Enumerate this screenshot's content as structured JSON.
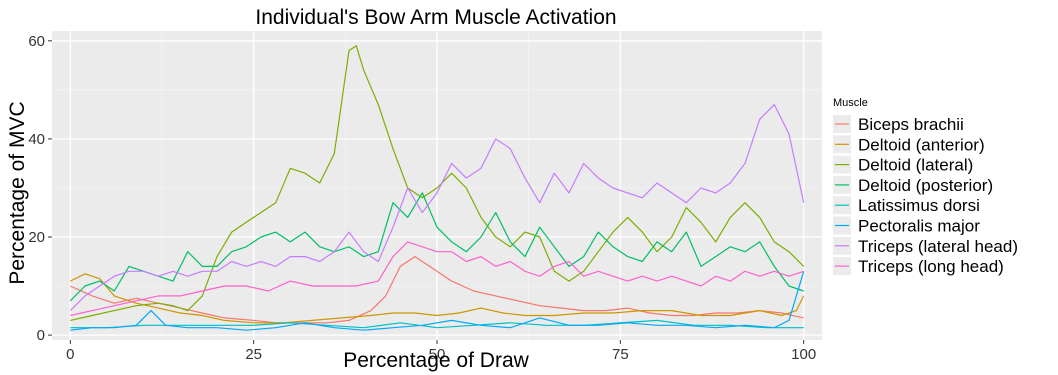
{
  "chart_data": {
    "type": "line",
    "title": "Individual's Bow Arm Muscle Activation",
    "xlabel": "Percentage of Draw",
    "ylabel": "Percentage of MVC",
    "xlim": [
      -2.5,
      102.5
    ],
    "ylim": [
      -1,
      62
    ],
    "x_ticks": [
      0,
      25,
      50,
      75,
      100
    ],
    "y_ticks": [
      0,
      20,
      40,
      60
    ],
    "grid": true,
    "background": "#ebebeb",
    "legend": {
      "title": "Muscle",
      "position": "right"
    },
    "series": [
      {
        "name": "Biceps brachii",
        "color": "#F8766D",
        "points": [
          [
            0,
            10
          ],
          [
            3,
            8
          ],
          [
            6,
            6.5
          ],
          [
            9,
            7.5
          ],
          [
            12,
            6.5
          ],
          [
            15,
            5.5
          ],
          [
            18,
            4.5
          ],
          [
            21,
            3.5
          ],
          [
            25,
            3
          ],
          [
            28,
            2.5
          ],
          [
            31,
            2.5
          ],
          [
            35,
            2.5
          ],
          [
            38,
            3
          ],
          [
            41,
            5
          ],
          [
            43,
            8
          ],
          [
            45,
            14
          ],
          [
            47,
            16
          ],
          [
            49,
            14
          ],
          [
            52,
            11
          ],
          [
            55,
            9
          ],
          [
            58,
            8
          ],
          [
            61,
            7
          ],
          [
            64,
            6
          ],
          [
            67,
            5.5
          ],
          [
            70,
            5
          ],
          [
            73,
            5
          ],
          [
            76,
            5.5
          ],
          [
            79,
            4.5
          ],
          [
            82,
            4
          ],
          [
            85,
            4
          ],
          [
            88,
            4.5
          ],
          [
            91,
            4.5
          ],
          [
            94,
            5
          ],
          [
            97,
            4.5
          ],
          [
            100,
            3.5
          ]
        ]
      },
      {
        "name": "Deltoid (anterior)",
        "color": "#CD9600",
        "points": [
          [
            0,
            11
          ],
          [
            2,
            12.5
          ],
          [
            4,
            11.5
          ],
          [
            6,
            8
          ],
          [
            9,
            6.5
          ],
          [
            12,
            5.5
          ],
          [
            15,
            4.5
          ],
          [
            18,
            4
          ],
          [
            21,
            3
          ],
          [
            25,
            2.5
          ],
          [
            29,
            2.5
          ],
          [
            33,
            3
          ],
          [
            37,
            3.5
          ],
          [
            41,
            4
          ],
          [
            44,
            4.5
          ],
          [
            47,
            4.5
          ],
          [
            50,
            4
          ],
          [
            53,
            4.5
          ],
          [
            56,
            5.5
          ],
          [
            59,
            4.5
          ],
          [
            62,
            4
          ],
          [
            66,
            4
          ],
          [
            70,
            4.5
          ],
          [
            74,
            4.5
          ],
          [
            78,
            5
          ],
          [
            82,
            5
          ],
          [
            86,
            4
          ],
          [
            90,
            4
          ],
          [
            94,
            5
          ],
          [
            97,
            4
          ],
          [
            99,
            5
          ],
          [
            100,
            8
          ]
        ]
      },
      {
        "name": "Deltoid (lateral)",
        "color": "#7CAE00",
        "points": [
          [
            0,
            3
          ],
          [
            3,
            4
          ],
          [
            6,
            5
          ],
          [
            9,
            6
          ],
          [
            12,
            6.5
          ],
          [
            14,
            6
          ],
          [
            16,
            5
          ],
          [
            18,
            8
          ],
          [
            20,
            16
          ],
          [
            22,
            21
          ],
          [
            24,
            23
          ],
          [
            26,
            25
          ],
          [
            28,
            27
          ],
          [
            30,
            34
          ],
          [
            32,
            33
          ],
          [
            34,
            31
          ],
          [
            36,
            37
          ],
          [
            38,
            58
          ],
          [
            39,
            59
          ],
          [
            40,
            54
          ],
          [
            42,
            47
          ],
          [
            44,
            38
          ],
          [
            46,
            30
          ],
          [
            48,
            28
          ],
          [
            50,
            30
          ],
          [
            52,
            33
          ],
          [
            54,
            30
          ],
          [
            56,
            24
          ],
          [
            58,
            20
          ],
          [
            60,
            18
          ],
          [
            62,
            21
          ],
          [
            64,
            20
          ],
          [
            66,
            13
          ],
          [
            68,
            11
          ],
          [
            70,
            13
          ],
          [
            72,
            17
          ],
          [
            74,
            21
          ],
          [
            76,
            24
          ],
          [
            78,
            21
          ],
          [
            80,
            17
          ],
          [
            82,
            20
          ],
          [
            84,
            26
          ],
          [
            86,
            23
          ],
          [
            88,
            19
          ],
          [
            90,
            24
          ],
          [
            92,
            27
          ],
          [
            94,
            24
          ],
          [
            96,
            19
          ],
          [
            98,
            17
          ],
          [
            100,
            14
          ]
        ]
      },
      {
        "name": "Deltoid (posterior)",
        "color": "#00BE67",
        "points": [
          [
            0,
            7
          ],
          [
            2,
            10
          ],
          [
            4,
            11
          ],
          [
            6,
            9
          ],
          [
            8,
            14
          ],
          [
            10,
            13
          ],
          [
            12,
            12
          ],
          [
            14,
            11
          ],
          [
            16,
            17
          ],
          [
            18,
            14
          ],
          [
            20,
            14
          ],
          [
            22,
            17
          ],
          [
            24,
            18
          ],
          [
            26,
            20
          ],
          [
            28,
            21
          ],
          [
            30,
            19
          ],
          [
            32,
            21
          ],
          [
            34,
            18
          ],
          [
            36,
            17
          ],
          [
            38,
            18
          ],
          [
            40,
            16
          ],
          [
            42,
            17
          ],
          [
            44,
            27
          ],
          [
            46,
            24
          ],
          [
            48,
            29
          ],
          [
            50,
            22
          ],
          [
            52,
            19
          ],
          [
            54,
            17
          ],
          [
            56,
            20
          ],
          [
            58,
            25
          ],
          [
            60,
            19
          ],
          [
            62,
            16
          ],
          [
            64,
            22
          ],
          [
            66,
            18
          ],
          [
            68,
            14
          ],
          [
            70,
            16
          ],
          [
            72,
            21
          ],
          [
            74,
            18
          ],
          [
            76,
            16
          ],
          [
            78,
            15
          ],
          [
            80,
            19
          ],
          [
            82,
            17
          ],
          [
            84,
            21
          ],
          [
            86,
            14
          ],
          [
            88,
            16
          ],
          [
            90,
            18
          ],
          [
            92,
            17
          ],
          [
            94,
            19
          ],
          [
            96,
            14
          ],
          [
            98,
            10
          ],
          [
            100,
            9
          ]
        ]
      },
      {
        "name": "Latissimus dorsi",
        "color": "#00BFC4",
        "points": [
          [
            0,
            1.5
          ],
          [
            5,
            1.5
          ],
          [
            10,
            2
          ],
          [
            15,
            2
          ],
          [
            20,
            2
          ],
          [
            25,
            2
          ],
          [
            30,
            2.5
          ],
          [
            35,
            2
          ],
          [
            40,
            1.5
          ],
          [
            45,
            2.5
          ],
          [
            50,
            1.5
          ],
          [
            55,
            2
          ],
          [
            60,
            2.5
          ],
          [
            65,
            2
          ],
          [
            70,
            2
          ],
          [
            75,
            2.5
          ],
          [
            80,
            3
          ],
          [
            85,
            2
          ],
          [
            90,
            2
          ],
          [
            95,
            1.5
          ],
          [
            100,
            1.5
          ]
        ]
      },
      {
        "name": "Pectoralis major",
        "color": "#00A9FF",
        "points": [
          [
            0,
            1
          ],
          [
            3,
            1.5
          ],
          [
            6,
            1.5
          ],
          [
            9,
            2
          ],
          [
            11,
            5
          ],
          [
            13,
            2
          ],
          [
            16,
            1.5
          ],
          [
            20,
            1.5
          ],
          [
            24,
            1
          ],
          [
            28,
            1.5
          ],
          [
            32,
            2.5
          ],
          [
            36,
            1.5
          ],
          [
            40,
            1
          ],
          [
            44,
            1.5
          ],
          [
            48,
            2
          ],
          [
            52,
            3
          ],
          [
            56,
            2
          ],
          [
            60,
            1.5
          ],
          [
            64,
            3.5
          ],
          [
            68,
            2
          ],
          [
            72,
            2
          ],
          [
            76,
            2.5
          ],
          [
            80,
            2
          ],
          [
            84,
            2
          ],
          [
            88,
            1.5
          ],
          [
            92,
            2
          ],
          [
            96,
            1.5
          ],
          [
            98,
            3
          ],
          [
            100,
            13
          ]
        ]
      },
      {
        "name": "Triceps (lateral head)",
        "color": "#C77CFF",
        "points": [
          [
            0,
            5
          ],
          [
            2,
            8
          ],
          [
            4,
            10
          ],
          [
            6,
            12
          ],
          [
            8,
            13
          ],
          [
            10,
            13
          ],
          [
            12,
            12
          ],
          [
            14,
            13
          ],
          [
            16,
            12
          ],
          [
            18,
            13
          ],
          [
            20,
            13
          ],
          [
            22,
            15
          ],
          [
            24,
            14
          ],
          [
            26,
            15
          ],
          [
            28,
            14
          ],
          [
            30,
            16
          ],
          [
            32,
            16
          ],
          [
            34,
            15
          ],
          [
            36,
            17
          ],
          [
            38,
            21
          ],
          [
            40,
            17
          ],
          [
            42,
            15
          ],
          [
            44,
            22
          ],
          [
            46,
            30
          ],
          [
            48,
            25
          ],
          [
            50,
            29
          ],
          [
            52,
            35
          ],
          [
            54,
            32
          ],
          [
            56,
            34
          ],
          [
            58,
            40
          ],
          [
            60,
            38
          ],
          [
            62,
            32
          ],
          [
            64,
            27
          ],
          [
            66,
            33
          ],
          [
            68,
            29
          ],
          [
            70,
            35
          ],
          [
            72,
            32
          ],
          [
            74,
            30
          ],
          [
            76,
            29
          ],
          [
            78,
            28
          ],
          [
            80,
            31
          ],
          [
            82,
            29
          ],
          [
            84,
            27
          ],
          [
            86,
            30
          ],
          [
            88,
            29
          ],
          [
            90,
            31
          ],
          [
            92,
            35
          ],
          [
            94,
            44
          ],
          [
            96,
            47
          ],
          [
            98,
            41
          ],
          [
            100,
            27
          ]
        ]
      },
      {
        "name": "Triceps (long head)",
        "color": "#FF61CC",
        "points": [
          [
            0,
            4
          ],
          [
            3,
            5
          ],
          [
            6,
            6
          ],
          [
            9,
            7
          ],
          [
            12,
            8
          ],
          [
            15,
            8
          ],
          [
            18,
            9
          ],
          [
            21,
            10
          ],
          [
            24,
            10
          ],
          [
            27,
            9
          ],
          [
            30,
            11
          ],
          [
            33,
            10
          ],
          [
            36,
            10
          ],
          [
            39,
            10
          ],
          [
            42,
            11
          ],
          [
            44,
            16
          ],
          [
            46,
            19
          ],
          [
            48,
            18
          ],
          [
            50,
            17
          ],
          [
            52,
            17
          ],
          [
            54,
            15
          ],
          [
            56,
            16
          ],
          [
            58,
            14
          ],
          [
            60,
            15
          ],
          [
            62,
            13
          ],
          [
            64,
            12
          ],
          [
            66,
            14
          ],
          [
            68,
            15
          ],
          [
            70,
            12
          ],
          [
            72,
            13
          ],
          [
            74,
            12
          ],
          [
            76,
            11
          ],
          [
            78,
            12
          ],
          [
            80,
            11
          ],
          [
            82,
            12
          ],
          [
            84,
            11
          ],
          [
            86,
            10
          ],
          [
            88,
            12
          ],
          [
            90,
            11
          ],
          [
            92,
            13
          ],
          [
            94,
            12
          ],
          [
            96,
            13
          ],
          [
            98,
            12
          ],
          [
            100,
            13
          ]
        ]
      }
    ]
  }
}
